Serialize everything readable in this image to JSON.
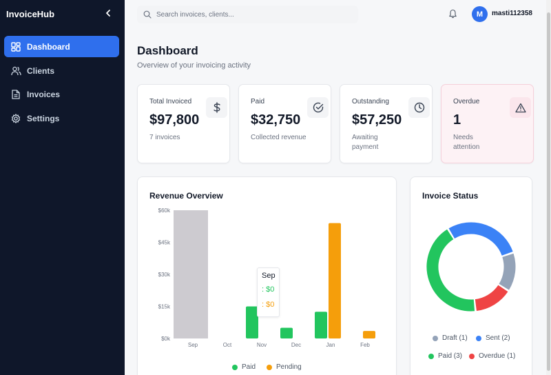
{
  "sidebar": {
    "brand": "InvoiceHub",
    "collapse_icon": "chevron-left-icon",
    "items": [
      {
        "label": "Dashboard",
        "icon": "grid-icon",
        "active": true
      },
      {
        "label": "Clients",
        "icon": "users-icon",
        "active": false
      },
      {
        "label": "Invoices",
        "icon": "file-icon",
        "active": false
      },
      {
        "label": "Settings",
        "icon": "gear-icon",
        "active": false
      }
    ]
  },
  "header": {
    "search_placeholder": "Search invoices, clients...",
    "notification_icon": "bell-icon",
    "avatar_initial": "M",
    "username": "masti112358"
  },
  "page": {
    "title": "Dashboard",
    "subtitle": "Overview of your invoicing activity"
  },
  "stats": [
    {
      "label": "Total Invoiced",
      "value": "$97,800",
      "note": "7 invoices",
      "icon": "dollar-icon"
    },
    {
      "label": "Paid",
      "value": "$32,750",
      "note": "Collected revenue",
      "icon": "check-circle-icon"
    },
    {
      "label": "Outstanding",
      "value": "$57,250",
      "note": "Awaiting payment",
      "icon": "clock-icon"
    },
    {
      "label": "Overdue",
      "value": "1",
      "note": "Needs attention",
      "icon": "alert-triangle-icon"
    }
  ],
  "revenue": {
    "title": "Revenue Overview",
    "tooltip": {
      "title": "Sep",
      "paid": ": $0",
      "pending": ": $0"
    },
    "legend": [
      {
        "label": "Paid",
        "color": "#22c55e"
      },
      {
        "label": "Pending",
        "color": "#f59e0b"
      }
    ]
  },
  "status": {
    "title": "Invoice Status",
    "legend": [
      {
        "label": "Draft (1)",
        "color": "#94a3b8"
      },
      {
        "label": "Sent (2)",
        "color": "#3b82f6"
      },
      {
        "label": "Paid (3)",
        "color": "#22c55e"
      },
      {
        "label": "Overdue (1)",
        "color": "#ef4444"
      }
    ]
  },
  "chart_data": [
    {
      "type": "bar",
      "categories": [
        "Sep",
        "Oct",
        "Nov",
        "Dec",
        "Jan",
        "Feb"
      ],
      "series": [
        {
          "name": "Paid",
          "values": [
            0,
            0,
            15000,
            5000,
            12500,
            0
          ],
          "color": "#22c55e"
        },
        {
          "name": "Pending",
          "values": [
            0,
            0,
            0,
            0,
            54000,
            3500
          ],
          "color": "#f59e0b"
        }
      ],
      "title": "Revenue Overview",
      "yticks": [
        "$0k",
        "$15k",
        "$30k",
        "$45k",
        "$60k"
      ],
      "ylim": [
        0,
        60000
      ],
      "hover_category": "Sep",
      "legend": "bottom"
    },
    {
      "type": "pie",
      "donut": true,
      "title": "Invoice Status",
      "labels": [
        "Sent",
        "Draft",
        "Overdue",
        "Paid"
      ],
      "values": [
        2,
        1,
        1,
        3
      ],
      "colors": [
        "#3b82f6",
        "#94a3b8",
        "#ef4444",
        "#22c55e"
      ],
      "legend": "bottom"
    }
  ]
}
